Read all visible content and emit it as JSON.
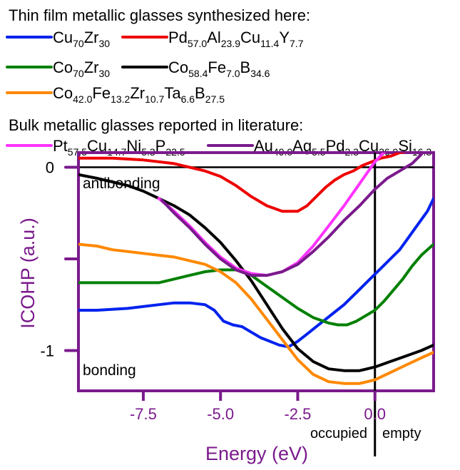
{
  "chart_data": {
    "type": "line",
    "xlabel": "Energy (eV)",
    "ylabel": "ICOHP (a.u.)",
    "xlim": [
      -9.6,
      1.9
    ],
    "ylim": [
      -1.22,
      0.08
    ],
    "xticks": [
      {
        "value": -7.5,
        "label": "-7.5"
      },
      {
        "value": -5.0,
        "label": "-5.0"
      },
      {
        "value": -2.5,
        "label": "-2.5"
      },
      {
        "value": 0.0,
        "label": "0.0"
      }
    ],
    "yticks": [
      {
        "value": 0,
        "label": "0"
      },
      {
        "value": -0.5,
        "label": ""
      },
      {
        "value": -1,
        "label": "-1"
      }
    ],
    "grid": false,
    "reference_lines": {
      "horizontal_y": 0,
      "vertical_x": 0
    },
    "annotations": {
      "antibonding": "antibonding",
      "bonding": "bonding",
      "occupied": "occupied",
      "separator": "|",
      "empty": "empty"
    },
    "legend": {
      "groups": [
        {
          "heading": "Thin film metallic glasses synthesized here:"
        },
        {
          "heading": "Bulk metallic glasses reported in literature:"
        }
      ],
      "placement": "top"
    },
    "series": [
      {
        "id": "cuzr",
        "group": 0,
        "color": "#0022ee",
        "label_parts": [
          {
            "t": "Cu"
          },
          {
            "s": "70"
          },
          {
            "t": "Zr"
          },
          {
            "s": "30"
          }
        ],
        "x": [
          -9.6,
          -9.0,
          -8.0,
          -7.0,
          -6.5,
          -6.0,
          -5.5,
          -5.2,
          -4.9,
          -4.6,
          -4.3,
          -4.0,
          -3.7,
          -3.4,
          -3.1,
          -2.8,
          -2.5,
          -2.2,
          -1.9,
          -1.6,
          -1.3,
          -1.0,
          -0.7,
          -0.4,
          -0.1,
          0.2,
          0.5,
          0.8,
          1.1,
          1.4,
          1.7,
          1.9
        ],
        "y": [
          -0.78,
          -0.78,
          -0.77,
          -0.75,
          -0.74,
          -0.74,
          -0.75,
          -0.78,
          -0.84,
          -0.86,
          -0.87,
          -0.9,
          -0.93,
          -0.95,
          -0.97,
          -0.98,
          -0.95,
          -0.91,
          -0.87,
          -0.83,
          -0.79,
          -0.75,
          -0.7,
          -0.65,
          -0.6,
          -0.55,
          -0.5,
          -0.45,
          -0.38,
          -0.31,
          -0.24,
          -0.17
        ]
      },
      {
        "id": "pdalcuy",
        "group": 0,
        "color": "#ee0000",
        "label_parts": [
          {
            "t": "Pd"
          },
          {
            "s": "57.0"
          },
          {
            "t": "Al"
          },
          {
            "s": "23.9"
          },
          {
            "t": "Cu"
          },
          {
            "s": "11.4"
          },
          {
            "t": "Y"
          },
          {
            "s": "7.7"
          }
        ],
        "x": [
          -9.6,
          -8.5,
          -7.5,
          -7.0,
          -6.5,
          -6.0,
          -5.5,
          -5.0,
          -4.5,
          -4.0,
          -3.5,
          -3.0,
          -2.5,
          -2.2,
          -1.9,
          -1.6,
          -1.3,
          -1.0,
          -0.7,
          -0.4,
          -0.1,
          0.2,
          0.5,
          0.8,
          1.1,
          1.4,
          1.6
        ],
        "y": [
          0.05,
          0.05,
          0.04,
          0.03,
          0.02,
          0.0,
          -0.02,
          -0.05,
          -0.1,
          -0.16,
          -0.21,
          -0.24,
          -0.24,
          -0.21,
          -0.16,
          -0.11,
          -0.07,
          -0.04,
          -0.02,
          0.01,
          0.03,
          0.05,
          0.06,
          0.08,
          0.09,
          0.1,
          0.1
        ]
      },
      {
        "id": "cozr",
        "group": 0,
        "color": "#008000",
        "label_parts": [
          {
            "t": "Co"
          },
          {
            "s": "70"
          },
          {
            "t": "Zr"
          },
          {
            "s": "30"
          }
        ],
        "x": [
          -9.6,
          -8.0,
          -7.0,
          -6.5,
          -6.0,
          -5.5,
          -5.0,
          -4.5,
          -4.0,
          -3.5,
          -3.0,
          -2.5,
          -2.0,
          -1.5,
          -1.2,
          -0.9,
          -0.6,
          -0.3,
          0.0,
          0.3,
          0.6,
          0.9,
          1.2,
          1.5,
          1.9
        ],
        "y": [
          -0.63,
          -0.63,
          -0.63,
          -0.61,
          -0.59,
          -0.57,
          -0.56,
          -0.56,
          -0.59,
          -0.65,
          -0.71,
          -0.77,
          -0.82,
          -0.85,
          -0.86,
          -0.86,
          -0.84,
          -0.81,
          -0.78,
          -0.73,
          -0.67,
          -0.61,
          -0.54,
          -0.48,
          -0.42
        ]
      },
      {
        "id": "cofeb",
        "group": 0,
        "color": "#000000",
        "label_parts": [
          {
            "t": "Co"
          },
          {
            "s": "58.4"
          },
          {
            "t": "Fe"
          },
          {
            "s": "7.0"
          },
          {
            "t": "B"
          },
          {
            "s": "34.6"
          }
        ],
        "x": [
          -9.6,
          -9.0,
          -8.5,
          -8.0,
          -7.5,
          -7.0,
          -6.5,
          -6.0,
          -5.5,
          -5.0,
          -4.5,
          -4.0,
          -3.5,
          -3.0,
          -2.5,
          -2.0,
          -1.5,
          -1.0,
          -0.5,
          0.0,
          0.5,
          1.0,
          1.5,
          1.9
        ],
        "y": [
          -0.04,
          -0.06,
          -0.08,
          -0.1,
          -0.13,
          -0.17,
          -0.21,
          -0.26,
          -0.33,
          -0.41,
          -0.51,
          -0.62,
          -0.75,
          -0.88,
          -0.99,
          -1.06,
          -1.1,
          -1.11,
          -1.11,
          -1.09,
          -1.06,
          -1.03,
          -1.0,
          -0.97
        ]
      },
      {
        "id": "cofezrtab",
        "group": 0,
        "color": "#ff8800",
        "label_parts": [
          {
            "t": "Co"
          },
          {
            "s": "42.0"
          },
          {
            "t": "Fe"
          },
          {
            "s": "13.2"
          },
          {
            "t": "Zr"
          },
          {
            "s": "10.7"
          },
          {
            "t": "Ta"
          },
          {
            "s": "6.6"
          },
          {
            "t": "B"
          },
          {
            "s": "27.5"
          }
        ],
        "x": [
          -9.6,
          -9.0,
          -8.5,
          -8.0,
          -7.5,
          -7.0,
          -6.5,
          -6.0,
          -5.5,
          -5.0,
          -4.5,
          -4.0,
          -3.5,
          -3.0,
          -2.5,
          -2.0,
          -1.5,
          -1.0,
          -0.5,
          0.0,
          0.5,
          1.0,
          1.5,
          1.9
        ],
        "y": [
          -0.42,
          -0.43,
          -0.45,
          -0.46,
          -0.47,
          -0.48,
          -0.49,
          -0.51,
          -0.53,
          -0.57,
          -0.63,
          -0.72,
          -0.83,
          -0.94,
          -1.05,
          -1.13,
          -1.17,
          -1.18,
          -1.18,
          -1.16,
          -1.12,
          -1.08,
          -1.04,
          -1.01
        ]
      },
      {
        "id": "ptcunip",
        "group": 1,
        "color": "#ff33ff",
        "label_parts": [
          {
            "t": "Pt"
          },
          {
            "s": "57.5"
          },
          {
            "t": "Cu"
          },
          {
            "s": "14.7"
          },
          {
            "t": "Ni"
          },
          {
            "s": "5.3"
          },
          {
            "t": "P"
          },
          {
            "s": "22.5"
          }
        ],
        "x": [
          -7.0,
          -6.5,
          -6.0,
          -5.5,
          -5.0,
          -4.5,
          -4.0,
          -3.5,
          -3.0,
          -2.5,
          -2.0,
          -1.5,
          -1.0,
          -0.5,
          0.0,
          0.4,
          0.8,
          1.1
        ],
        "y": [
          -0.17,
          -0.24,
          -0.32,
          -0.41,
          -0.49,
          -0.55,
          -0.58,
          -0.59,
          -0.57,
          -0.52,
          -0.43,
          -0.32,
          -0.21,
          -0.09,
          0.03,
          0.1,
          0.12,
          0.13
        ]
      },
      {
        "id": "auagpdcusi",
        "group": 1,
        "color": "#7a1a8c",
        "label_parts": [
          {
            "t": "Au"
          },
          {
            "s": "49.0"
          },
          {
            "t": "Ag"
          },
          {
            "s": "5.5"
          },
          {
            "t": "Pd"
          },
          {
            "s": "2.3"
          },
          {
            "t": "Cu"
          },
          {
            "s": "26.9"
          },
          {
            "t": "Si"
          },
          {
            "s": "16.3"
          }
        ],
        "x": [
          -6.9,
          -6.5,
          -6.0,
          -5.5,
          -5.0,
          -4.5,
          -4.0,
          -3.5,
          -3.0,
          -2.5,
          -2.0,
          -1.5,
          -1.0,
          -0.5,
          0.0,
          0.4,
          0.8,
          1.2,
          1.5,
          1.7
        ],
        "y": [
          -0.18,
          -0.25,
          -0.33,
          -0.42,
          -0.5,
          -0.56,
          -0.59,
          -0.59,
          -0.57,
          -0.53,
          -0.46,
          -0.38,
          -0.29,
          -0.21,
          -0.12,
          -0.06,
          -0.02,
          0.02,
          0.07,
          0.12
        ]
      }
    ]
  }
}
